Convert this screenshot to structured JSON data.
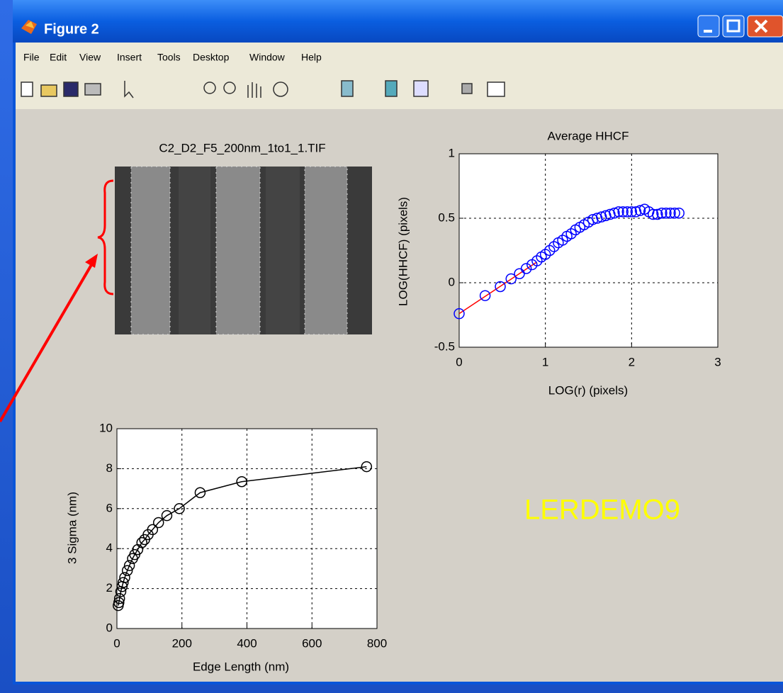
{
  "window": {
    "title": "Figure 2",
    "menu": [
      "File",
      "Edit",
      "View",
      "Insert",
      "Tools",
      "Desktop",
      "Window",
      "Help"
    ]
  },
  "image_title": "C2_D2_F5_200nm_1to1_1.TIF",
  "annotation": "LERDEMO9",
  "chart_data": [
    {
      "type": "line",
      "title": "Average HHCF",
      "xlabel": "LOG(r) (pixels)",
      "ylabel": "LOG(HHCF) (pixels)",
      "xlim": [
        0,
        3
      ],
      "xticks": [
        0,
        1,
        2,
        3
      ],
      "ylim": [
        -0.5,
        1
      ],
      "yticks": [
        -0.5,
        0,
        0.5,
        1
      ],
      "grid": true,
      "series": [
        {
          "color": "#ff0000",
          "marker": "none",
          "line": true,
          "x": [
            0,
            0.9
          ],
          "values": [
            -0.24,
            0.16
          ]
        },
        {
          "color": "#0000ff",
          "marker": "circle",
          "line": false,
          "x": [
            0,
            0.301,
            0.477,
            0.602,
            0.699,
            0.778,
            0.845,
            0.903,
            0.954,
            1.0,
            1.05,
            1.1,
            1.15,
            1.2,
            1.25,
            1.3,
            1.35,
            1.4,
            1.45,
            1.5,
            1.55,
            1.6,
            1.65,
            1.7,
            1.75,
            1.8,
            1.85,
            1.9,
            1.95,
            2.0,
            2.05,
            2.1,
            2.15,
            2.2,
            2.25,
            2.3,
            2.35,
            2.4,
            2.45,
            2.5,
            2.55
          ],
          "values": [
            -0.24,
            -0.1,
            -0.03,
            0.03,
            0.07,
            0.11,
            0.14,
            0.17,
            0.2,
            0.22,
            0.25,
            0.28,
            0.31,
            0.33,
            0.36,
            0.38,
            0.41,
            0.43,
            0.45,
            0.47,
            0.49,
            0.5,
            0.51,
            0.52,
            0.53,
            0.54,
            0.55,
            0.55,
            0.55,
            0.55,
            0.55,
            0.56,
            0.57,
            0.55,
            0.53,
            0.53,
            0.54,
            0.54,
            0.54,
            0.54,
            0.54
          ]
        }
      ]
    },
    {
      "type": "line",
      "xlabel": "Edge Length (nm)",
      "ylabel": "3 Sigma (nm)",
      "xlim": [
        0,
        800
      ],
      "xticks": [
        0,
        200,
        400,
        600,
        800
      ],
      "ylim": [
        0,
        10
      ],
      "yticks": [
        0,
        2,
        4,
        6,
        8,
        10
      ],
      "grid": true,
      "series": [
        {
          "color": "#000000",
          "marker": "circle",
          "line": true,
          "x": [
            4,
            6,
            8,
            12,
            16,
            19.2,
            24,
            32,
            38.4,
            48,
            54.9,
            64,
            76.8,
            85.3,
            96,
            109.7,
            128,
            153.6,
            192,
            256,
            384,
            768
          ],
          "values": [
            1.15,
            1.3,
            1.5,
            1.85,
            2.1,
            2.3,
            2.55,
            2.9,
            3.15,
            3.5,
            3.7,
            3.95,
            4.3,
            4.45,
            4.7,
            4.95,
            5.3,
            5.65,
            6.0,
            6.8,
            7.35,
            8.1
          ]
        }
      ]
    }
  ]
}
